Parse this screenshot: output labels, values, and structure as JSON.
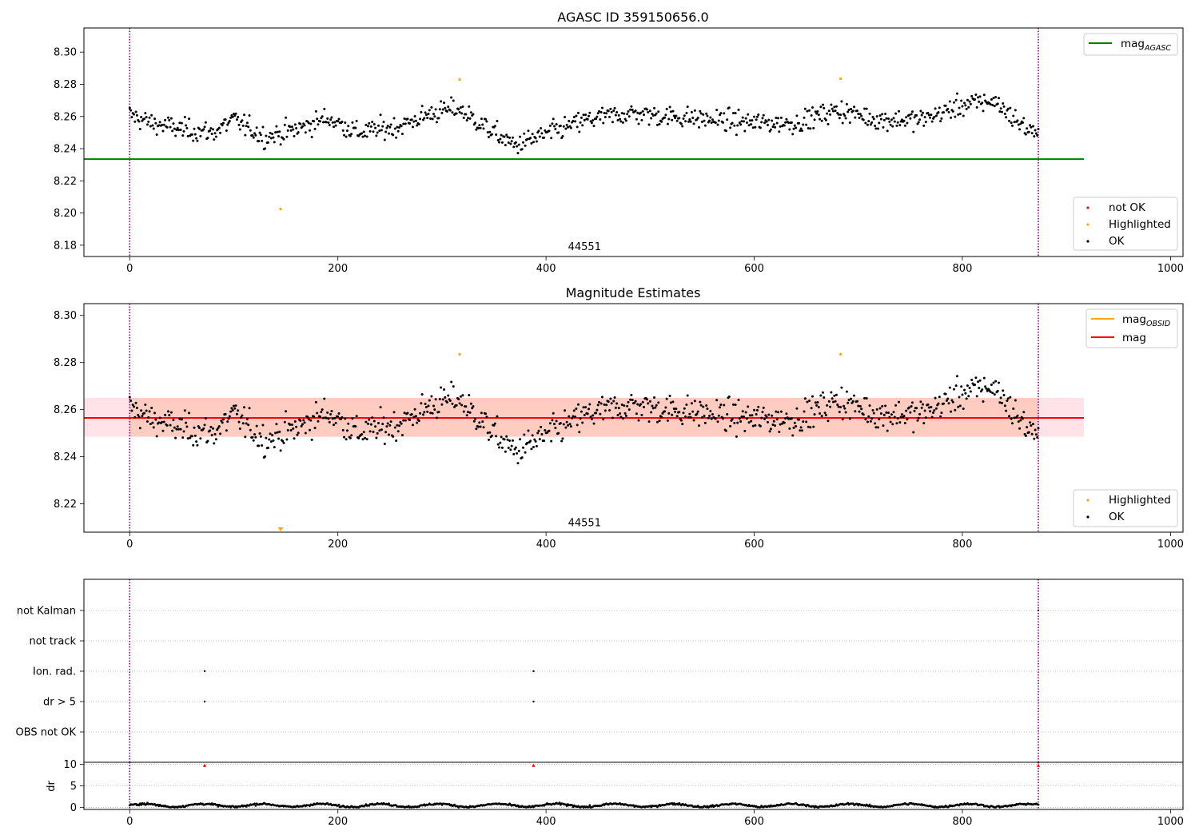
{
  "chart_data": [
    {
      "type": "scatter",
      "title": "AGASC ID 359150656.0",
      "xlim": [
        -44,
        1012
      ],
      "ylim": [
        8.173,
        8.315
      ],
      "xticks": [
        "0",
        "200",
        "400",
        "600",
        "800",
        "1000"
      ],
      "yticks": [
        "8.18",
        "8.20",
        "8.22",
        "8.24",
        "8.26",
        "8.28",
        "8.30"
      ],
      "annotation": {
        "text": "44551",
        "x": 437,
        "y": 8.177
      },
      "vlines": [
        0,
        873
      ],
      "mag_agasc": 8.2335,
      "highlighted_points": [
        {
          "x": 145,
          "y": 8.2025
        },
        {
          "x": 317,
          "y": 8.283
        },
        {
          "x": 683,
          "y": 8.2835
        }
      ],
      "legend_top": [
        "mag_AGASC"
      ],
      "legend_bottom": [
        "not OK",
        "Highlighted",
        "OK"
      ],
      "colors": {
        "ok": "#000000",
        "not_ok": "#ff0000",
        "highlighted": "#ffa500",
        "mag_agasc": "#008000",
        "vline": "#800080"
      }
    },
    {
      "type": "scatter",
      "title": "Magnitude Estimates",
      "xlim": [
        -44,
        1012
      ],
      "ylim": [
        8.208,
        8.305
      ],
      "xticks": [
        "0",
        "200",
        "400",
        "600",
        "800",
        "1000"
      ],
      "yticks": [
        "8.22",
        "8.24",
        "8.26",
        "8.28",
        "8.30"
      ],
      "annotation": {
        "text": "44551",
        "x": 437,
        "y": 8.2105
      },
      "mag": 8.2565,
      "mag_band": [
        8.2485,
        8.265
      ],
      "obsid_band": [
        8.2485,
        8.265
      ],
      "highlighted_points": [
        {
          "x": 317,
          "y": 8.2835
        },
        {
          "x": 683,
          "y": 8.2835
        }
      ],
      "offscale_marker": {
        "x": 145
      },
      "legend_top": [
        "mag_OBSID",
        "mag"
      ],
      "legend_bottom": [
        "Highlighted",
        "OK"
      ],
      "colors": {
        "ok": "#000000",
        "highlighted": "#ffa500",
        "mag": "#ff0000",
        "mag_obsid": "#ffa500",
        "band_mag": "#ffc0cb",
        "band_obsid": "#ffa07a"
      }
    },
    {
      "type": "scatter",
      "title": "",
      "xlim": [
        -44,
        1012
      ],
      "categories": [
        "not Kalman",
        "not track",
        "Ion. rad.",
        "dr > 5",
        "OBS not OK"
      ],
      "flag_points": {
        "not Kalman": [
          873
        ],
        "not track": [],
        "Ion. rad.": [
          72,
          388
        ],
        "dr > 5": [
          72,
          388
        ],
        "OBS not OK": []
      }
    },
    {
      "type": "scatter",
      "title": "",
      "ylabel": "dr",
      "xlim": [
        -44,
        1012
      ],
      "ylim": [
        -0.5,
        10.5
      ],
      "xticks": [
        "0",
        "200",
        "400",
        "600",
        "800",
        "1000"
      ],
      "yticks": [
        "0",
        "5",
        "10"
      ],
      "high_dr_points": [
        {
          "x": 72,
          "y": 9.8
        },
        {
          "x": 388,
          "y": 9.8
        },
        {
          "x": 873,
          "y": 9.8
        }
      ],
      "colors": {
        "dr": "#000000",
        "high_dr": "#ff0000"
      }
    }
  ]
}
